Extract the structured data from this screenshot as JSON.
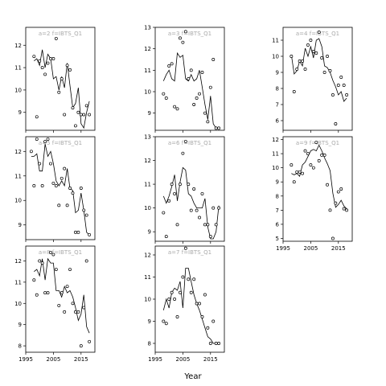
{
  "figure": {
    "xlabel": "Year"
  },
  "chart_data": [
    {
      "type": "scatter",
      "title": "a=2 f=IBTS_Q1",
      "xlim": [
        1995,
        2020
      ],
      "ylim": [
        8.2,
        12.8
      ],
      "yticks": [
        9,
        10,
        11,
        12
      ],
      "xticks": [],
      "points": {
        "x": [
          1998,
          1999,
          2000,
          2001,
          2002,
          2003,
          2004,
          2005,
          2006,
          2007,
          2008,
          2009,
          2010,
          2011,
          2012,
          2013,
          2014,
          2015,
          2016,
          2017,
          2018
        ],
        "y": [
          11.5,
          8.8,
          11.3,
          11.0,
          10.7,
          11.2,
          11.4,
          11.4,
          12.3,
          9.9,
          10.5,
          8.9,
          11.1,
          10.9,
          9.2,
          8.4,
          9.0,
          8.9,
          8.9,
          9.3,
          8.9
        ]
      },
      "fit": {
        "x": [
          1998,
          1999,
          2000,
          2001,
          2002,
          2003,
          2004,
          2005,
          2006,
          2007,
          2008,
          2009,
          2010,
          2011,
          2012,
          2013,
          2014,
          2015,
          2016,
          2017,
          2018
        ],
        "y": [
          11.3,
          11.4,
          11.1,
          11.8,
          11.0,
          11.6,
          11.4,
          10.5,
          10.6,
          10.0,
          10.6,
          10.1,
          11.2,
          10.2,
          9.2,
          9.4,
          10.1,
          8.5,
          8.3,
          9.0,
          9.5
        ]
      }
    },
    {
      "type": "scatter",
      "title": "a=3 f=IBTS_Q1",
      "xlim": [
        1995,
        2020
      ],
      "ylim": [
        8.2,
        13.0
      ],
      "yticks": [
        9,
        10,
        11,
        12,
        13
      ],
      "xticks": [],
      "points": {
        "x": [
          1998,
          1999,
          2000,
          2001,
          2002,
          2003,
          2004,
          2005,
          2006,
          2007,
          2008,
          2009,
          2010,
          2011,
          2012,
          2013,
          2014,
          2015,
          2016,
          2017,
          2018
        ],
        "y": [
          9.9,
          9.7,
          11.2,
          11.3,
          9.3,
          9.2,
          12.5,
          12.3,
          12.8,
          10.6,
          11.0,
          9.4,
          9.7,
          9.9,
          10.9,
          9.0,
          8.6,
          10.2,
          11.5,
          8.3,
          8.3
        ]
      },
      "fit": {
        "x": [
          1998,
          1999,
          2000,
          2001,
          2002,
          2003,
          2004,
          2005,
          2006,
          2007,
          2008,
          2009,
          2010,
          2011,
          2012,
          2013,
          2014,
          2015,
          2016,
          2017,
          2018
        ],
        "y": [
          10.5,
          10.8,
          11.0,
          10.6,
          10.5,
          11.8,
          11.6,
          11.7,
          10.6,
          10.5,
          10.8,
          10.5,
          10.6,
          11.0,
          10.2,
          9.4,
          8.7,
          9.8,
          8.5,
          8.3,
          8.3
        ]
      }
    },
    {
      "type": "scatter",
      "title": "a=4 f=IBTS_Q1",
      "xlim": [
        1995,
        2020
      ],
      "ylim": [
        5.4,
        11.8
      ],
      "yticks": [
        6,
        7,
        8,
        9,
        10,
        11
      ],
      "xticks": [],
      "points": {
        "x": [
          1998,
          1999,
          2000,
          2001,
          2002,
          2003,
          2004,
          2005,
          2006,
          2007,
          2008,
          2009,
          2010,
          2011,
          2012,
          2013,
          2014,
          2015,
          2016,
          2017,
          2018
        ],
        "y": [
          10.0,
          7.8,
          9.2,
          9.7,
          9.7,
          9.2,
          10.7,
          11.0,
          10.3,
          10.2,
          11.5,
          9.9,
          9.0,
          10.0,
          9.1,
          7.6,
          5.8,
          8.2,
          8.7,
          8.2,
          7.6
        ]
      },
      "fit": {
        "x": [
          1998,
          1999,
          2000,
          2001,
          2002,
          2003,
          2004,
          2005,
          2006,
          2007,
          2008,
          2009,
          2010,
          2011,
          2012,
          2013,
          2014,
          2015,
          2016,
          2017,
          2018
        ],
        "y": [
          10.1,
          8.9,
          9.1,
          9.7,
          9.4,
          10.5,
          10.0,
          10.6,
          9.9,
          11.0,
          11.1,
          10.6,
          9.4,
          9.3,
          9.0,
          8.5,
          8.1,
          7.6,
          7.8,
          7.2,
          7.4
        ]
      }
    },
    {
      "type": "scatter",
      "title": "a=5 f=IBTS_Q1",
      "xlim": [
        1995,
        2020
      ],
      "ylim": [
        8.4,
        12.6
      ],
      "yticks": [
        9,
        10,
        11,
        12
      ],
      "xticks": [],
      "points": {
        "x": [
          1997,
          1998,
          1999,
          2000,
          2001,
          2002,
          2003,
          2004,
          2005,
          2006,
          2007,
          2008,
          2009,
          2010,
          2011,
          2012,
          2013,
          2014,
          2015,
          2016,
          2017,
          2018
        ],
        "y": [
          12.0,
          10.6,
          12.5,
          11.5,
          10.6,
          12.4,
          12.5,
          11.5,
          10.7,
          10.6,
          9.8,
          10.9,
          11.3,
          9.8,
          10.5,
          10.3,
          8.7,
          8.7,
          10.5,
          9.6,
          9.4,
          8.6
        ]
      },
      "fit": {
        "x": [
          1997,
          1998,
          1999,
          2000,
          2001,
          2002,
          2003,
          2004,
          2005,
          2006,
          2007,
          2008,
          2009,
          2010,
          2011,
          2012,
          2013,
          2014,
          2015,
          2016,
          2017,
          2018
        ],
        "y": [
          11.8,
          11.8,
          11.9,
          11.2,
          11.2,
          12.3,
          11.8,
          12.0,
          11.5,
          10.8,
          10.6,
          10.8,
          10.6,
          11.3,
          10.5,
          10.4,
          9.5,
          9.6,
          10.3,
          9.6,
          8.7,
          8.6
        ]
      }
    },
    {
      "type": "scatter",
      "title": "a=6 f=IBTS_Q1",
      "xlim": [
        1995,
        2020
      ],
      "ylim": [
        8.6,
        13.0
      ],
      "yticks": [
        9,
        10,
        11,
        12,
        13
      ],
      "xticks": [],
      "points": {
        "x": [
          1998,
          1999,
          2000,
          2001,
          2002,
          2003,
          2004,
          2005,
          2006,
          2007,
          2008,
          2009,
          2010,
          2011,
          2012,
          2013,
          2014,
          2015,
          2016,
          2017,
          2018
        ],
        "y": [
          9.8,
          8.8,
          10.3,
          11.0,
          10.6,
          9.3,
          11.0,
          12.3,
          12.8,
          11.0,
          9.9,
          10.8,
          9.9,
          9.6,
          10.6,
          9.3,
          9.3,
          8.8,
          10.0,
          9.3,
          10.0
        ]
      },
      "fit": {
        "x": [
          1998,
          1999,
          2000,
          2001,
          2002,
          2003,
          2004,
          2005,
          2006,
          2007,
          2008,
          2009,
          2010,
          2011,
          2012,
          2013,
          2014,
          2015,
          2016,
          2017,
          2018
        ],
        "y": [
          10.5,
          10.2,
          10.5,
          10.9,
          11.4,
          10.3,
          11.1,
          11.7,
          11.6,
          10.6,
          10.5,
          10.2,
          10.0,
          10.0,
          10.0,
          10.4,
          9.2,
          8.7,
          8.7,
          9.0,
          10.1
        ]
      }
    },
    {
      "type": "scatter",
      "title": "a=7 f=IBTS_Q1",
      "xlim": [
        1995,
        2020
      ],
      "ylim": [
        7.6,
        12.4
      ],
      "yticks": [
        8,
        9,
        10,
        11,
        12
      ],
      "xticks": [
        1995,
        2005,
        2015
      ],
      "points": {
        "x": [
          1998,
          1999,
          2000,
          2001,
          2002,
          2003,
          2004,
          2005,
          2006,
          2007,
          2008,
          2009,
          2010,
          2011,
          2012,
          2013,
          2014,
          2015,
          2016,
          2017,
          2018
        ],
        "y": [
          9.0,
          8.9,
          10.0,
          10.3,
          10.0,
          9.2,
          10.3,
          11.0,
          12.3,
          10.9,
          10.3,
          10.9,
          9.8,
          9.8,
          9.2,
          10.2,
          8.7,
          8.0,
          9.0,
          8.0,
          8.0
        ]
      },
      "fit": {
        "x": [
          1998,
          1999,
          2000,
          2001,
          2002,
          2003,
          2004,
          2005,
          2006,
          2007,
          2008,
          2009,
          2010,
          2011,
          2012,
          2013,
          2014,
          2015,
          2016,
          2017,
          2018
        ],
        "y": [
          9.5,
          10.0,
          9.6,
          10.3,
          10.5,
          10.4,
          10.8,
          9.6,
          11.4,
          11.4,
          10.8,
          10.2,
          9.8,
          9.5,
          9.1,
          8.7,
          8.3,
          8.2,
          8.0,
          8.0,
          8.0
        ]
      }
    },
    {
      "type": "scatter",
      "title": "a=8 f=IBTS_Q1",
      "xlim": [
        1995,
        2020
      ],
      "ylim": [
        7.7,
        12.7
      ],
      "yticks": [
        8,
        9,
        10,
        11,
        12
      ],
      "xticks": [
        1995,
        2005,
        2015
      ],
      "points": {
        "x": [
          1998,
          1999,
          2000,
          2001,
          2002,
          2003,
          2004,
          2005,
          2006,
          2007,
          2008,
          2009,
          2010,
          2011,
          2012,
          2013,
          2014,
          2015,
          2016,
          2017,
          2018
        ],
        "y": [
          11.1,
          10.4,
          12.0,
          11.9,
          10.5,
          10.5,
          12.4,
          12.3,
          11.6,
          9.9,
          10.5,
          9.6,
          10.8,
          11.6,
          10.0,
          9.6,
          9.6,
          8.0,
          9.8,
          12.0,
          8.2
        ]
      },
      "fit": {
        "x": [
          1998,
          1999,
          2000,
          2001,
          2002,
          2003,
          2004,
          2005,
          2006,
          2007,
          2008,
          2009,
          2010,
          2011,
          2012,
          2013,
          2014,
          2015,
          2016,
          2017,
          2018
        ],
        "y": [
          11.5,
          11.6,
          11.3,
          12.1,
          11.1,
          12.1,
          11.9,
          11.9,
          10.6,
          10.6,
          10.3,
          10.8,
          10.5,
          10.6,
          10.3,
          9.8,
          9.2,
          9.5,
          10.4,
          8.9,
          8.6
        ]
      }
    },
    {
      "type": "scatter",
      "title": "a=9 f=IBTS_Q1",
      "xlim": [
        1995,
        2020
      ],
      "ylim": [
        4.8,
        12.2
      ],
      "yticks": [
        5,
        6,
        7,
        8,
        9,
        10,
        11,
        12
      ],
      "xticks": [
        1995,
        2005,
        2015
      ],
      "points": {
        "x": [
          1998,
          1999,
          2000,
          2001,
          2002,
          2003,
          2004,
          2005,
          2006,
          2007,
          2008,
          2009,
          2010,
          2011,
          2012,
          2013,
          2014,
          2015,
          2016,
          2017,
          2018
        ],
        "y": [
          10.2,
          9.0,
          9.7,
          9.7,
          9.6,
          11.2,
          11.0,
          10.2,
          10.0,
          11.8,
          10.5,
          10.9,
          10.9,
          8.8,
          7.0,
          5.0,
          7.5,
          8.3,
          8.5,
          7.1,
          7.0
        ]
      },
      "fit": {
        "x": [
          1998,
          1999,
          2000,
          2001,
          2002,
          2003,
          2004,
          2005,
          2006,
          2007,
          2008,
          2009,
          2010,
          2011,
          2012,
          2013,
          2014,
          2015,
          2016,
          2017,
          2018
        ],
        "y": [
          9.6,
          9.5,
          9.6,
          9.4,
          10.2,
          10.4,
          10.8,
          11.2,
          11.3,
          11.2,
          11.6,
          11.2,
          10.7,
          10.3,
          9.8,
          8.2,
          7.2,
          7.4,
          7.7,
          7.3,
          7.1
        ]
      }
    }
  ]
}
